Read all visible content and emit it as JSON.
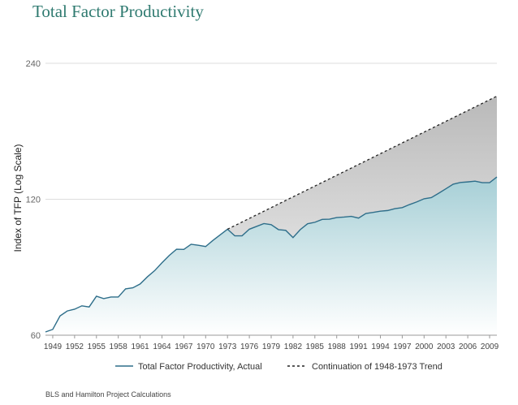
{
  "title": "Total Factor Productivity",
  "source": "BLS and Hamilton Project Calculations",
  "colors": {
    "title": "#2f7a70",
    "actual_line": "#2e6e8a",
    "actual_fill_top": "#a6cfd6",
    "actual_fill_bottom": "#ffffff",
    "trend_fill_top": "#b9b9b9",
    "trend_fill_bottom": "#dcdcdc",
    "trend_line": "#222222",
    "grid": "#dddddd"
  },
  "chart_data": {
    "type": "area",
    "title": "Total Factor Productivity",
    "xlabel": "",
    "ylabel": "Index of TFP (Log Scale)",
    "y_scale": "log",
    "ylim": [
      60,
      240
    ],
    "xlim": [
      1948,
      2010
    ],
    "yticks": [
      "60",
      "120",
      "240"
    ],
    "xticks": [
      "1949",
      "1952",
      "1955",
      "1958",
      "1961",
      "1964",
      "1967",
      "1970",
      "1973",
      "1976",
      "1979",
      "1982",
      "1985",
      "1988",
      "1991",
      "1994",
      "1997",
      "2000",
      "2003",
      "2006",
      "2009"
    ],
    "grid": "horizontal",
    "legend_position": "bottom",
    "series": [
      {
        "name": "Total Factor Productivity, Actual",
        "style": "solid",
        "x": [
          1948,
          1949,
          1950,
          1951,
          1952,
          1953,
          1954,
          1955,
          1956,
          1957,
          1958,
          1959,
          1960,
          1961,
          1962,
          1963,
          1964,
          1965,
          1966,
          1967,
          1968,
          1969,
          1970,
          1971,
          1972,
          1973,
          1974,
          1975,
          1976,
          1977,
          1978,
          1979,
          1980,
          1981,
          1982,
          1983,
          1984,
          1985,
          1986,
          1987,
          1988,
          1989,
          1990,
          1991,
          1992,
          1993,
          1994,
          1995,
          1996,
          1997,
          1998,
          1999,
          2000,
          2001,
          2002,
          2003,
          2004,
          2005,
          2006,
          2007,
          2008,
          2009,
          2010
        ],
        "y": [
          61.0,
          61.8,
          66.2,
          67.9,
          68.5,
          69.7,
          69.3,
          73.2,
          72.3,
          72.9,
          72.9,
          76.0,
          76.4,
          77.9,
          80.8,
          83.4,
          86.8,
          90.1,
          93.0,
          92.9,
          95.4,
          94.9,
          94.3,
          97.3,
          100.1,
          103.0,
          99.6,
          99.6,
          103.0,
          104.5,
          106.0,
          105.4,
          102.8,
          102.4,
          98.7,
          102.8,
          105.9,
          106.7,
          108.3,
          108.4,
          109.3,
          109.6,
          110.0,
          109.0,
          111.6,
          112.2,
          112.9,
          113.3,
          114.4,
          115.0,
          116.8,
          118.4,
          120.3,
          121.0,
          123.7,
          126.6,
          129.6,
          130.7,
          131.1,
          131.6,
          130.6,
          130.6,
          134.4
        ]
      },
      {
        "name": "Continuation of 1948-1973 Trend",
        "style": "dashed",
        "x": [
          1973,
          2010
        ],
        "y": [
          103.0,
          203.0
        ]
      }
    ]
  }
}
